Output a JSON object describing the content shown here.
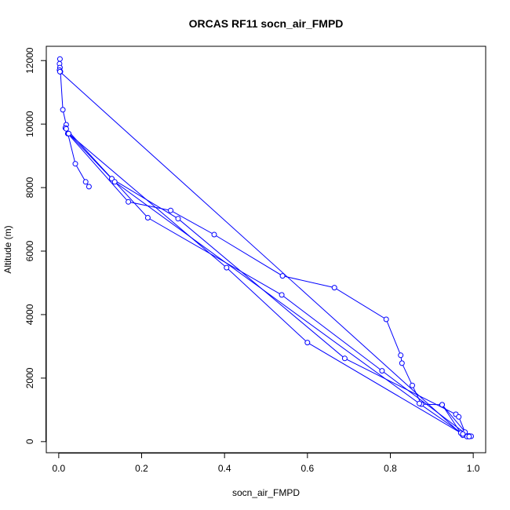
{
  "chart_data": {
    "type": "line",
    "title": "ORCAS RF11 socn_air_FMPD",
    "xlabel": "socn_air_FMPD",
    "ylabel": "Altitude (m)",
    "xlim": [
      -0.03,
      1.03
    ],
    "ylim": [
      -350,
      12450
    ],
    "xticks": [
      "0.0",
      "0.2",
      "0.4",
      "0.6",
      "0.8",
      "1.0"
    ],
    "yticks": [
      "0",
      "2000",
      "4000",
      "6000",
      "8000",
      "10000",
      "12000"
    ],
    "series_color": "#0000ff",
    "marker": "open-circle",
    "segments": [
      [
        [
          0.003,
          12050
        ],
        [
          0.002,
          11900
        ],
        [
          0.003,
          11780
        ],
        [
          0.002,
          11700
        ],
        [
          0.004,
          11650
        ],
        [
          0.01,
          10450
        ],
        [
          0.018,
          9980
        ],
        [
          0.016,
          9880
        ],
        [
          0.022,
          9700
        ],
        [
          0.04,
          8750
        ],
        [
          0.065,
          8180
        ],
        [
          0.073,
          8030
        ]
      ],
      [
        [
          0.022,
          9700
        ],
        [
          0.168,
          7550
        ],
        [
          0.27,
          7280
        ],
        [
          0.375,
          6520
        ],
        [
          0.54,
          5220
        ],
        [
          0.665,
          4850
        ],
        [
          0.79,
          3850
        ],
        [
          0.825,
          2720
        ],
        [
          0.828,
          2470
        ],
        [
          0.853,
          1770
        ],
        [
          0.875,
          1180
        ],
        [
          0.925,
          1160
        ],
        [
          0.97,
          270
        ],
        [
          0.985,
          180
        ]
      ],
      [
        [
          0.024,
          9700
        ],
        [
          0.128,
          8280
        ],
        [
          0.288,
          7020
        ],
        [
          0.69,
          2620
        ],
        [
          0.958,
          860
        ],
        [
          0.965,
          780
        ],
        [
          0.98,
          300
        ],
        [
          0.99,
          180
        ]
      ],
      [
        [
          0.018,
          9850
        ],
        [
          0.215,
          7050
        ],
        [
          0.538,
          4620
        ],
        [
          0.78,
          2230
        ],
        [
          0.99,
          170
        ]
      ],
      [
        [
          0.024,
          9700
        ],
        [
          0.405,
          5480
        ],
        [
          0.6,
          3120
        ],
        [
          0.985,
          160
        ]
      ],
      [
        [
          0.003,
          11650
        ],
        [
          0.975,
          200
        ],
        [
          0.995,
          170
        ]
      ],
      [
        [
          0.128,
          8280
        ],
        [
          0.135,
          8180
        ],
        [
          0.87,
          1200
        ],
        [
          0.975,
          240
        ]
      ],
      [
        [
          0.925,
          1160
        ],
        [
          0.99,
          160
        ]
      ]
    ]
  }
}
